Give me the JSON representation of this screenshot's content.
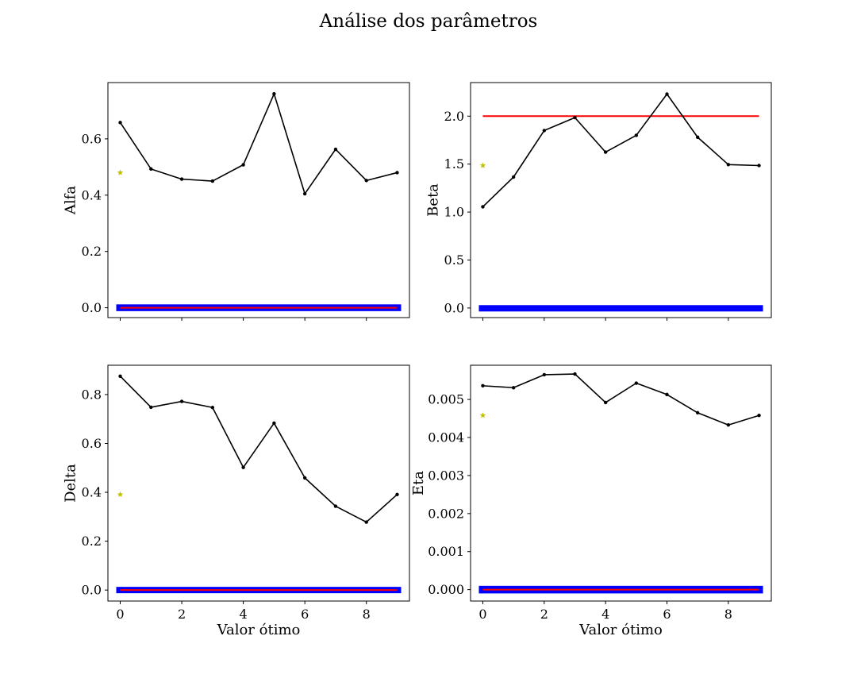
{
  "figure_title": "Análise dos parâmetros",
  "colors": {
    "series": "#000000",
    "optimal_marker": "#bfbf00",
    "reference_line": "#ff0000",
    "bound_band": "#0000ff"
  },
  "chart_data": [
    {
      "type": "line",
      "ylabel": "Alfa",
      "xlabel": "",
      "x": [
        0,
        1,
        2,
        3,
        4,
        5,
        6,
        7,
        8,
        9
      ],
      "values": [
        0.658,
        0.493,
        0.457,
        0.45,
        0.508,
        0.76,
        0.405,
        0.563,
        0.452,
        0.48
      ],
      "optimal_point": {
        "x": 0,
        "y": 0.48
      },
      "reference_line": 0.0,
      "band": [
        -0.012,
        0.012
      ],
      "xlim": [
        -0.4,
        9.4
      ],
      "ylim": [
        -0.035,
        0.8
      ],
      "xticks": [
        0,
        2,
        4,
        6,
        8
      ],
      "yticks": [
        0.0,
        0.2,
        0.4,
        0.6
      ],
      "ytick_labels": [
        "0.0",
        "0.2",
        "0.4",
        "0.6"
      ],
      "show_xtick_labels": false
    },
    {
      "type": "line",
      "ylabel": "Beta",
      "xlabel": "",
      "x": [
        0,
        1,
        2,
        3,
        4,
        5,
        6,
        7,
        8,
        9
      ],
      "values": [
        1.055,
        1.365,
        1.85,
        1.985,
        1.625,
        1.8,
        2.23,
        1.78,
        1.495,
        1.485
      ],
      "optimal_point": {
        "x": 0,
        "y": 1.485
      },
      "reference_line": 2.0,
      "band": [
        -0.03,
        0.03
      ],
      "xlim": [
        -0.4,
        9.4
      ],
      "ylim": [
        -0.1,
        2.35
      ],
      "xticks": [
        0,
        2,
        4,
        6,
        8
      ],
      "yticks": [
        0.0,
        0.5,
        1.0,
        1.5,
        2.0
      ],
      "ytick_labels": [
        "0.0",
        "0.5",
        "1.0",
        "1.5",
        "2.0"
      ],
      "show_xtick_labels": false
    },
    {
      "type": "line",
      "ylabel": "Delta",
      "xlabel": "Valor ótimo",
      "x": [
        0,
        1,
        2,
        3,
        4,
        5,
        6,
        7,
        8,
        9
      ],
      "values": [
        0.875,
        0.748,
        0.772,
        0.747,
        0.502,
        0.683,
        0.459,
        0.343,
        0.278,
        0.391
      ],
      "optimal_point": {
        "x": 0,
        "y": 0.391
      },
      "reference_line": 0.0,
      "band": [
        -0.013,
        0.013
      ],
      "xlim": [
        -0.4,
        9.4
      ],
      "ylim": [
        -0.045,
        0.92
      ],
      "xticks": [
        0,
        2,
        4,
        6,
        8
      ],
      "yticks": [
        0.0,
        0.2,
        0.4,
        0.6,
        0.8
      ],
      "ytick_labels": [
        "0.0",
        "0.2",
        "0.4",
        "0.6",
        "0.8"
      ],
      "show_xtick_labels": true
    },
    {
      "type": "line",
      "ylabel": "Eta",
      "xlabel": "Valor ótimo",
      "x": [
        0,
        1,
        2,
        3,
        4,
        5,
        6,
        7,
        8,
        9
      ],
      "values": [
        0.00536,
        0.00531,
        0.00565,
        0.00567,
        0.00492,
        0.00543,
        0.00513,
        0.00465,
        0.00433,
        0.00458
      ],
      "optimal_point": {
        "x": 0,
        "y": 0.00458
      },
      "reference_line": 0.0,
      "band": [
        -0.0001,
        0.0001
      ],
      "xlim": [
        -0.4,
        9.4
      ],
      "ylim": [
        -0.0003,
        0.0059
      ],
      "xticks": [
        0,
        2,
        4,
        6,
        8
      ],
      "yticks": [
        0.0,
        0.001,
        0.002,
        0.003,
        0.004,
        0.005
      ],
      "ytick_labels": [
        "0.000",
        "0.001",
        "0.002",
        "0.003",
        "0.004",
        "0.005"
      ],
      "show_xtick_labels": true
    }
  ]
}
